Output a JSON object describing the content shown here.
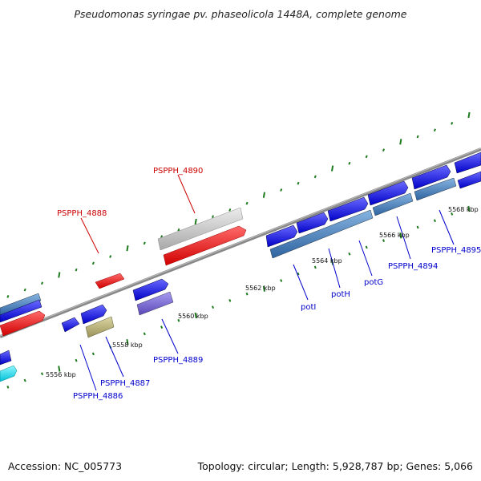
{
  "title": "Pseudomonas syringae pv. phaseolicola 1448A, complete genome",
  "footer": {
    "accession": "Accession: NC_005773",
    "summary": "Topology: circular; Length: 5,928,787 bp; Genes: 5,066"
  },
  "scale_labels": [
    "5556 kbp",
    "5558 kbp",
    "5560 kbp",
    "5562 kbp",
    "5564 kbp",
    "5566 kbp",
    "5568 kbp"
  ],
  "gene_labels": [
    {
      "text": "PSPPH_4888",
      "color": "#cc0000"
    },
    {
      "text": "PSPPH_4890",
      "color": "#cc0000"
    },
    {
      "text": "PSPPH_4886",
      "color": "#0000cc"
    },
    {
      "text": "PSPPH_4887",
      "color": "#0000cc"
    },
    {
      "text": "PSPPH_4889",
      "color": "#0000cc"
    },
    {
      "text": "potI",
      "color": "#0000cc"
    },
    {
      "text": "potH",
      "color": "#0000cc"
    },
    {
      "text": "potG",
      "color": "#0000cc"
    },
    {
      "text": "PSPPH_4894",
      "color": "#0000cc"
    },
    {
      "text": "PSPPH_4895",
      "color": "#0000cc"
    }
  ],
  "colors": {
    "backbone": "#8a8a8a",
    "tick": "#1e7a1e",
    "cds_blue": "#1a1aee",
    "cds_steel": "#4f86c2",
    "cds_red": "#ee1111",
    "cds_grey": "#c4c4c4",
    "cds_purple": "#7a6ad0",
    "cds_khaki": "#b8b07a",
    "cds_cyan": "#19e0ee"
  }
}
